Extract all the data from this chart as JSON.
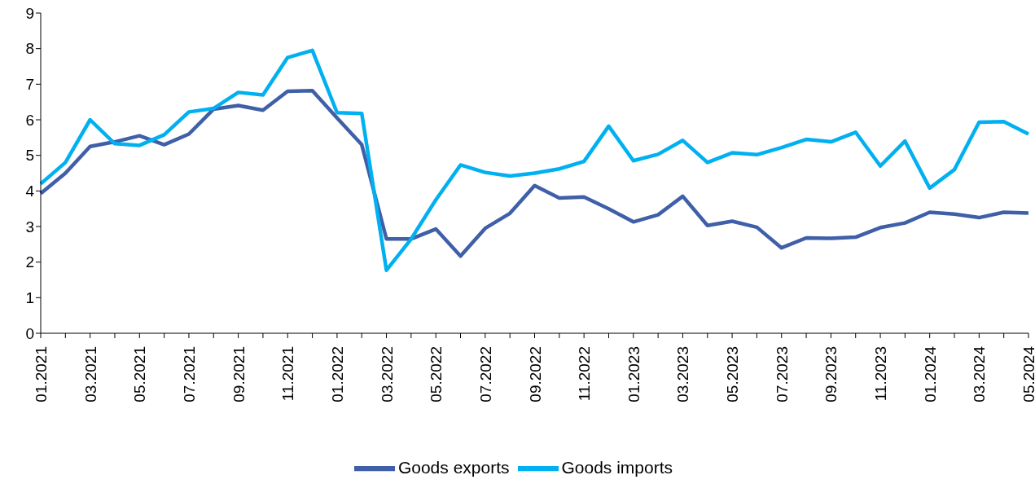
{
  "chart_data": {
    "type": "line",
    "categories": [
      "01.2021",
      null,
      "03.2021",
      null,
      "05.2021",
      null,
      "07.2021",
      null,
      "09.2021",
      null,
      "11.2021",
      null,
      "01.2022",
      null,
      "03.2022",
      null,
      "05.2022",
      null,
      "07.2022",
      null,
      "09.2022",
      null,
      "11.2022",
      null,
      "01.2023",
      null,
      "03.2023",
      null,
      "05.2023",
      null,
      "07.2023",
      null,
      "09.2023",
      null,
      "11.2023",
      null,
      "01.2024",
      null,
      "03.2024",
      null,
      "05.2024"
    ],
    "series": [
      {
        "name": "Goods exports",
        "color": "#3f5fa8",
        "values": [
          3.93,
          4.5,
          5.25,
          5.38,
          5.55,
          5.3,
          5.6,
          6.3,
          6.4,
          6.27,
          6.8,
          6.82,
          6.05,
          5.3,
          2.65,
          2.65,
          2.93,
          2.17,
          2.95,
          3.37,
          4.15,
          3.8,
          3.83,
          3.5,
          3.13,
          3.33,
          3.85,
          3.03,
          3.15,
          2.98,
          2.4,
          2.68,
          2.67,
          2.7,
          2.97,
          3.1,
          3.4,
          3.35,
          3.25,
          3.4,
          3.38
        ]
      },
      {
        "name": "Goods imports",
        "color": "#00b0f0",
        "values": [
          4.2,
          4.8,
          6.0,
          5.33,
          5.28,
          5.58,
          6.22,
          6.32,
          6.77,
          6.7,
          7.75,
          7.95,
          6.2,
          6.18,
          1.77,
          2.65,
          3.75,
          4.73,
          4.52,
          4.42,
          4.5,
          4.62,
          4.83,
          5.82,
          4.85,
          5.03,
          5.42,
          4.8,
          5.07,
          5.02,
          5.22,
          5.45,
          5.38,
          5.65,
          4.7,
          5.4,
          4.08,
          4.6,
          5.93,
          5.95,
          5.6
        ]
      }
    ],
    "ylim": [
      0,
      9
    ],
    "yticks": [
      0,
      1,
      2,
      3,
      4,
      5,
      6,
      7,
      8,
      9
    ],
    "grid": false,
    "legend": "bottom",
    "marker": "none",
    "line_style": "solid"
  }
}
